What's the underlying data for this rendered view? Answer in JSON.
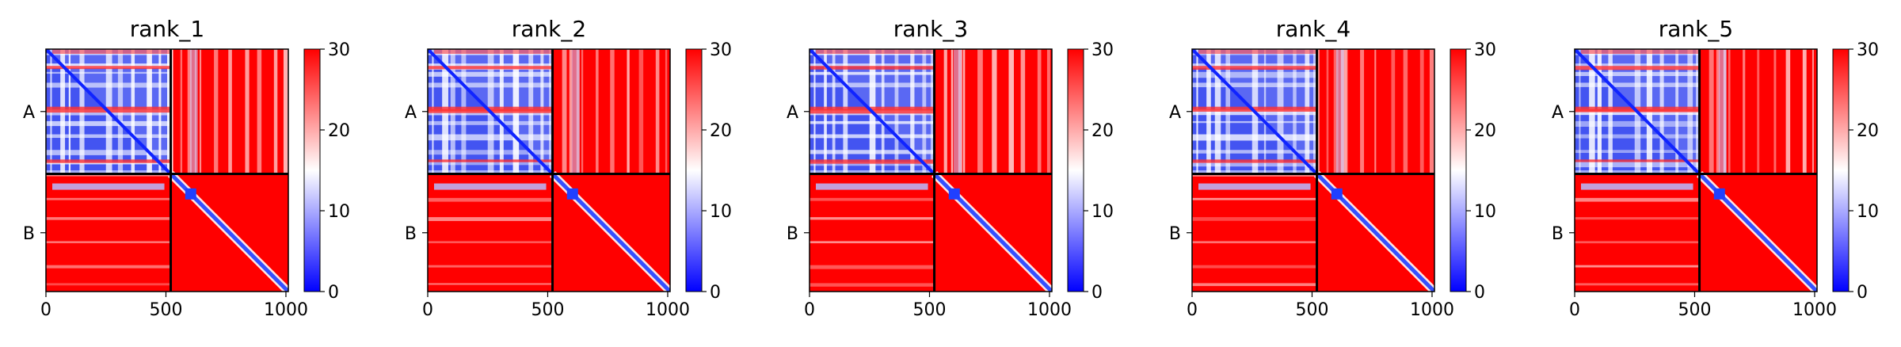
{
  "chart_data": [
    {
      "type": "heatmap",
      "title": "rank_1",
      "chains": [
        "A",
        "B"
      ],
      "chain_boundary": 520,
      "matrix_size": 1010,
      "xlim": [
        0,
        1010
      ],
      "xticks": [
        0,
        500,
        1000
      ],
      "colorbar": {
        "range": [
          0,
          30
        ],
        "ticks": [
          0,
          10,
          20,
          30
        ],
        "colormap": "bwr"
      }
    },
    {
      "type": "heatmap",
      "title": "rank_2",
      "chains": [
        "A",
        "B"
      ],
      "chain_boundary": 520,
      "matrix_size": 1010,
      "xlim": [
        0,
        1010
      ],
      "xticks": [
        0,
        500,
        1000
      ],
      "colorbar": {
        "range": [
          0,
          30
        ],
        "ticks": [
          0,
          10,
          20,
          30
        ],
        "colormap": "bwr"
      }
    },
    {
      "type": "heatmap",
      "title": "rank_3",
      "chains": [
        "A",
        "B"
      ],
      "chain_boundary": 520,
      "matrix_size": 1010,
      "xlim": [
        0,
        1010
      ],
      "xticks": [
        0,
        500,
        1000
      ],
      "colorbar": {
        "range": [
          0,
          30
        ],
        "ticks": [
          0,
          10,
          20,
          30
        ],
        "colormap": "bwr"
      }
    },
    {
      "type": "heatmap",
      "title": "rank_4",
      "chains": [
        "A",
        "B"
      ],
      "chain_boundary": 520,
      "matrix_size": 1010,
      "xlim": [
        0,
        1010
      ],
      "xticks": [
        0,
        500,
        1000
      ],
      "colorbar": {
        "range": [
          0,
          30
        ],
        "ticks": [
          0,
          10,
          20,
          30
        ],
        "colormap": "bwr"
      }
    },
    {
      "type": "heatmap",
      "title": "rank_5",
      "chains": [
        "A",
        "B"
      ],
      "chain_boundary": 520,
      "matrix_size": 1010,
      "xlim": [
        0,
        1010
      ],
      "xticks": [
        0,
        500,
        1000
      ],
      "colorbar": {
        "range": [
          0,
          30
        ],
        "ticks": [
          0,
          10,
          20,
          30
        ],
        "colormap": "bwr"
      }
    }
  ],
  "colors": {
    "low": "#0000ff",
    "mid": "#ffffff",
    "high": "#ff0000",
    "axis": "#000000"
  }
}
